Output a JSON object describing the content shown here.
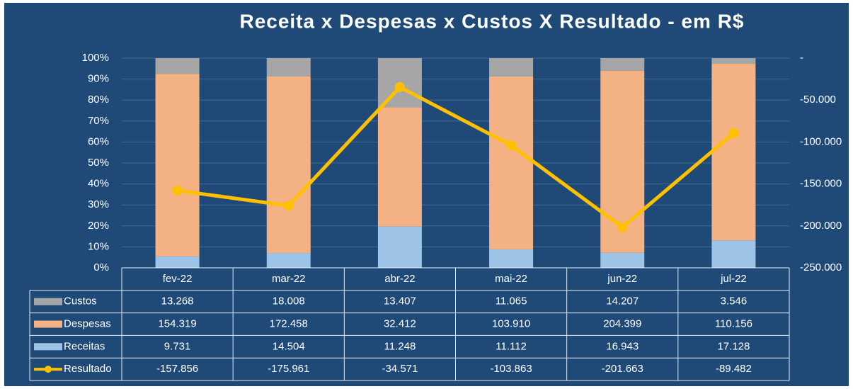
{
  "chart_data": {
    "type": "bar",
    "stacking": "percent",
    "title": "Receita x Despesas x Custos X Resultado - em R$",
    "categories": [
      "fev-22",
      "mar-22",
      "abr-22",
      "mai-22",
      "jun-22",
      "jul-22"
    ],
    "series": [
      {
        "name": "Custos",
        "color": "#a6a6a6",
        "values": [
          13268,
          18008,
          13407,
          11065,
          14207,
          3546
        ],
        "value_labels": [
          "13.268",
          "18.008",
          "13.407",
          "11.065",
          "14.207",
          "3.546"
        ]
      },
      {
        "name": "Despesas",
        "color": "#f4b183",
        "values": [
          154319,
          172458,
          32412,
          103910,
          204399,
          110156
        ],
        "value_labels": [
          "154.319",
          "172.458",
          "32.412",
          "103.910",
          "204.399",
          "110.156"
        ]
      },
      {
        "name": "Receitas",
        "color": "#9dc3e6",
        "values": [
          9731,
          14504,
          11248,
          11112,
          16943,
          17128
        ],
        "value_labels": [
          "9.731",
          "14.504",
          "11.248",
          "11.112",
          "16.943",
          "17.128"
        ]
      },
      {
        "name": "Resultado",
        "color": "#ffc000",
        "type": "line",
        "axis": "y2",
        "values": [
          -157856,
          -175961,
          -34571,
          -103863,
          -201663,
          -89482
        ],
        "value_labels": [
          "-157.856",
          "-175.961",
          "-34.571",
          "-103.863",
          "-201.663",
          "-89.482"
        ]
      }
    ],
    "ylim": [
      0,
      100
    ],
    "yticks": [
      {
        "value": 0,
        "label": "0%"
      },
      {
        "value": 10,
        "label": "10%"
      },
      {
        "value": 20,
        "label": "20%"
      },
      {
        "value": 30,
        "label": "30%"
      },
      {
        "value": 40,
        "label": "40%"
      },
      {
        "value": 50,
        "label": "50%"
      },
      {
        "value": 60,
        "label": "60%"
      },
      {
        "value": 70,
        "label": "70%"
      },
      {
        "value": 80,
        "label": "80%"
      },
      {
        "value": 90,
        "label": "90%"
      },
      {
        "value": 100,
        "label": "100%"
      }
    ],
    "y2lim": [
      -250000,
      0
    ],
    "y2ticks": [
      {
        "value": -250000,
        "label": "-250.000"
      },
      {
        "value": -200000,
        "label": "-200.000"
      },
      {
        "value": -150000,
        "label": "-150.000"
      },
      {
        "value": -100000,
        "label": "-100.000"
      },
      {
        "value": -50000,
        "label": "-50.000"
      },
      {
        "value": 0,
        "label": "-"
      }
    ],
    "grid": true
  }
}
